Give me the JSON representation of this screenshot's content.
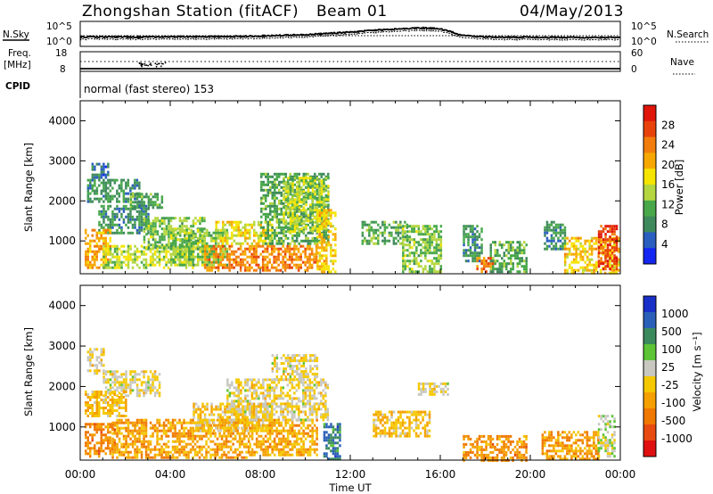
{
  "header": {
    "station": "Zhongshan Station (fitACF)",
    "beam": "Beam 01",
    "date": "04/May/2013"
  },
  "summary": {
    "nsky_label": "N.Sky",
    "nsearch_label": "N.Search",
    "nsky_ticks": [
      "10^5",
      "10^0"
    ],
    "nsearch_ticks": [
      "10^5",
      "10^0"
    ],
    "freq_label_top": "Freq.",
    "freq_label_unit": "[MHz]",
    "freq_ticks": [
      "18",
      "8"
    ],
    "nave_label": "Nave",
    "nave_ticks": [
      "60",
      "0"
    ],
    "cpid_label": "CPID",
    "cpid_text": "normal (fast stereo) 153"
  },
  "axes": {
    "ylabel": "Slant Range [km]",
    "xlabel": "Time UT",
    "yticks": [
      "1000",
      "2000",
      "3000",
      "4000"
    ],
    "xticks": [
      "00:00",
      "04:00",
      "08:00",
      "12:00",
      "16:00",
      "20:00",
      "00:00"
    ]
  },
  "colorbars": {
    "power": {
      "label": "Power [dB]",
      "ticks": [
        "4",
        "8",
        "12",
        "16",
        "20",
        "24",
        "28"
      ],
      "colors": [
        "#1426f2",
        "#2a5fbf",
        "#3f8a5c",
        "#48a84a",
        "#b4d640",
        "#f5e400",
        "#f7a800",
        "#f27d0c",
        "#e8420a",
        "#e01408"
      ]
    },
    "velocity": {
      "label": "Velocity [m s⁻¹]",
      "ticks": [
        "1000",
        "500",
        "100",
        "25",
        "-25",
        "-100",
        "-500",
        "-1000"
      ],
      "colors": [
        "#1930c8",
        "#2a60b8",
        "#3a8a5e",
        "#5cc436",
        "#c8c8c0",
        "#f5c800",
        "#f5a000",
        "#f07800",
        "#e84a10",
        "#e01010"
      ]
    }
  },
  "chart_data": [
    {
      "type": "heatmap",
      "name": "power",
      "x_range_hours": [
        0,
        24
      ],
      "y_range_km": [
        180,
        4500
      ],
      "value_unit": "dB",
      "value_range": [
        0,
        30
      ],
      "regions": [
        {
          "t": [
            0.5,
            1.2
          ],
          "r": [
            2600,
            2950
          ],
          "v": 6
        },
        {
          "t": [
            0.3,
            2.6
          ],
          "r": [
            2000,
            2550
          ],
          "v": 8
        },
        {
          "t": [
            2.2,
            3.6
          ],
          "r": [
            1800,
            2200
          ],
          "v": 10
        },
        {
          "t": [
            0.8,
            3.0
          ],
          "r": [
            1200,
            1900
          ],
          "v": 8
        },
        {
          "t": [
            0.2,
            1.3
          ],
          "r": [
            350,
            1300
          ],
          "v": 20
        },
        {
          "t": [
            1.0,
            5.0
          ],
          "r": [
            300,
            900
          ],
          "v": 14
        },
        {
          "t": [
            2.8,
            5.5
          ],
          "r": [
            800,
            1600
          ],
          "v": 12
        },
        {
          "t": [
            4.0,
            6.5
          ],
          "r": [
            400,
            1300
          ],
          "v": 12
        },
        {
          "t": [
            5.5,
            10.5
          ],
          "r": [
            250,
            900
          ],
          "v": 22
        },
        {
          "t": [
            6.0,
            8.5
          ],
          "r": [
            900,
            1500
          ],
          "v": 16
        },
        {
          "t": [
            8.0,
            11.0
          ],
          "r": [
            900,
            2700
          ],
          "v": 10
        },
        {
          "t": [
            9.0,
            11.0
          ],
          "r": [
            1200,
            2600
          ],
          "v": 14
        },
        {
          "t": [
            10.5,
            11.3
          ],
          "r": [
            200,
            1800
          ],
          "v": 18
        },
        {
          "t": [
            12.5,
            14.5
          ],
          "r": [
            900,
            1500
          ],
          "v": 10
        },
        {
          "t": [
            14.3,
            16.0
          ],
          "r": [
            200,
            1400
          ],
          "v": 12
        },
        {
          "t": [
            17.0,
            17.8
          ],
          "r": [
            500,
            1400
          ],
          "v": 8
        },
        {
          "t": [
            17.6,
            18.3
          ],
          "r": [
            200,
            600
          ],
          "v": 22
        },
        {
          "t": [
            18.2,
            19.8
          ],
          "r": [
            200,
            1000
          ],
          "v": 10
        },
        {
          "t": [
            20.6,
            21.5
          ],
          "r": [
            800,
            1500
          ],
          "v": 8
        },
        {
          "t": [
            21.5,
            23.9
          ],
          "r": [
            200,
            1100
          ],
          "v": 18
        },
        {
          "t": [
            23.0,
            23.8
          ],
          "r": [
            300,
            1400
          ],
          "v": 26
        }
      ]
    },
    {
      "type": "heatmap",
      "name": "velocity",
      "x_range_hours": [
        0,
        24
      ],
      "y_range_km": [
        180,
        4500
      ],
      "value_unit": "m s^-1",
      "value_range": [
        -1000,
        1000
      ],
      "regions": [
        {
          "t": [
            0.3,
            1.0
          ],
          "r": [
            2300,
            2950
          ],
          "v": 0
        },
        {
          "t": [
            1.0,
            3.5
          ],
          "r": [
            1800,
            2400
          ],
          "v": 0
        },
        {
          "t": [
            0.2,
            2.0
          ],
          "r": [
            1300,
            1900
          ],
          "v": -150
        },
        {
          "t": [
            0.2,
            1.5
          ],
          "r": [
            250,
            1100
          ],
          "v": -400
        },
        {
          "t": [
            1.4,
            7.5
          ],
          "r": [
            250,
            1200
          ],
          "v": -300
        },
        {
          "t": [
            5.0,
            8.5
          ],
          "r": [
            900,
            1600
          ],
          "v": -120
        },
        {
          "t": [
            7.5,
            10.5
          ],
          "r": [
            300,
            1200
          ],
          "v": -250
        },
        {
          "t": [
            6.5,
            11.0
          ],
          "r": [
            1200,
            2200
          ],
          "v": 0
        },
        {
          "t": [
            8.5,
            10.5
          ],
          "r": [
            2200,
            2800
          ],
          "v": 0
        },
        {
          "t": [
            10.8,
            11.5
          ],
          "r": [
            200,
            1100
          ],
          "v": 600
        },
        {
          "t": [
            13.0,
            15.5
          ],
          "r": [
            800,
            1400
          ],
          "v": -150
        },
        {
          "t": [
            15.0,
            16.3
          ],
          "r": [
            1800,
            2100
          ],
          "v": 0
        },
        {
          "t": [
            17.0,
            19.8
          ],
          "r": [
            200,
            800
          ],
          "v": -400
        },
        {
          "t": [
            20.5,
            23.0
          ],
          "r": [
            200,
            900
          ],
          "v": -300
        },
        {
          "t": [
            23.0,
            23.7
          ],
          "r": [
            300,
            1300
          ],
          "v": 120
        }
      ]
    },
    {
      "type": "line",
      "name": "nsky-nsearch",
      "x_range_hours": [
        0,
        24
      ],
      "y_scale": "log",
      "y_range": [
        1,
        100000
      ],
      "series": [
        {
          "x": [
            0,
            2,
            4,
            6,
            8,
            10,
            11,
            12,
            13,
            14,
            15,
            16,
            17,
            18,
            20,
            22,
            24
          ],
          "y": [
            60,
            60,
            65,
            70,
            100,
            200,
            400,
            800,
            2000,
            4000,
            8000,
            5000,
            150,
            60,
            50,
            45,
            40
          ]
        }
      ]
    },
    {
      "type": "scatter",
      "name": "freq-nave",
      "x_range_hours": [
        0,
        24
      ],
      "series": [
        {
          "x": [
            0,
            24
          ],
          "y": [
            12,
            12
          ]
        },
        {
          "x": [
            0,
            24
          ],
          "y": [
            8,
            8
          ]
        }
      ]
    }
  ]
}
